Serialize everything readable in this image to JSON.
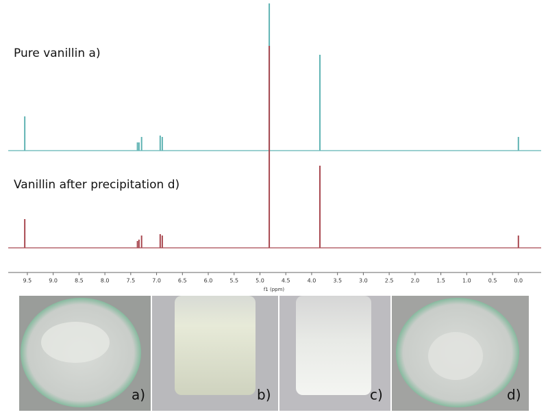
{
  "chart_data": {
    "type": "spectrum",
    "xlabel": "f1 (ppm)",
    "xlim": [
      9.87,
      -0.44
    ],
    "xticks": [
      9.5,
      {
        "value": 9,
        "label": "9.0"
      },
      8.5,
      {
        "value": 8,
        "label": "8.0"
      },
      7.5,
      {
        "value": 7,
        "label": "7.0"
      },
      6.5,
      {
        "value": 6,
        "label": "6.0"
      },
      5.5,
      {
        "value": 5,
        "label": "5.0"
      },
      4.5,
      {
        "value": 4,
        "label": "4.0"
      },
      3.5,
      {
        "value": 3,
        "label": "3.0"
      },
      2.5,
      {
        "value": 2,
        "label": "2.0"
      },
      1.5,
      {
        "value": 1,
        "label": "1.0"
      },
      0.5,
      {
        "value": 0,
        "label": "0.0"
      }
    ],
    "ylim": [
      0,
      215
    ],
    "x": [
      9.55,
      7.37,
      7.34,
      7.29,
      6.93,
      6.89,
      4.82,
      3.84,
      0.0
    ],
    "series": [
      {
        "name": "Pure vanillin a)",
        "color": "#5fb3b3",
        "values": [
          50,
          12,
          12,
          20,
          22,
          20,
          215,
          140,
          20
        ]
      },
      {
        "name": "Vanillin after precipitation d)",
        "color": "#a8474f",
        "values": [
          42,
          10,
          12,
          18,
          20,
          18,
          295,
          120,
          18
        ]
      }
    ]
  },
  "photos": {
    "labels": [
      "a)",
      "b)",
      "c)",
      "d)"
    ]
  }
}
